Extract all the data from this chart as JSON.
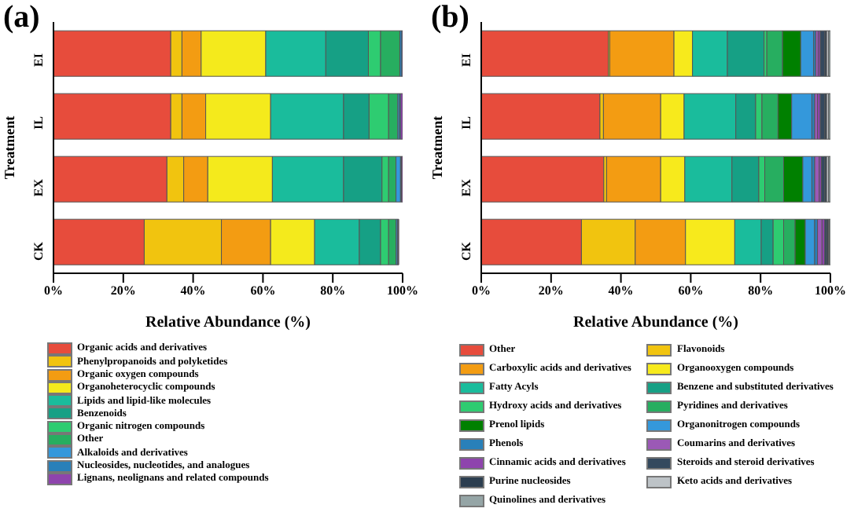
{
  "chart_data": [
    {
      "type": "bar",
      "title": "(a)",
      "xlabel": "Relative Abundance (%)",
      "ylabel": "Treatment",
      "orientation": "horizontal",
      "stacked": true,
      "legend": "bottom",
      "grid": false,
      "categories": [
        "EI",
        "IL",
        "EX",
        "CK"
      ],
      "xlim": [
        0,
        100
      ],
      "xticks": [
        {
          "value": 0,
          "label": "0%"
        },
        {
          "value": 20,
          "label": "20%"
        },
        {
          "value": 40,
          "label": "40%"
        },
        {
          "value": 60,
          "label": "60%"
        },
        {
          "value": 80,
          "label": "80%"
        },
        {
          "value": 100,
          "label": "100%"
        }
      ],
      "series": [
        {
          "name": "Organic acids and derivatives",
          "color": "#e74c3c",
          "values": [
            33.6,
            33.6,
            32.5,
            26.0
          ]
        },
        {
          "name": "Phenylpropanoids and polyketides",
          "color": "#f1c40f",
          "values": [
            3.2,
            3.2,
            4.8,
            22.1
          ]
        },
        {
          "name": "Organic oxygen compounds",
          "color": "#f39c12",
          "values": [
            5.5,
            6.8,
            6.9,
            14.1
          ]
        },
        {
          "name": "Organoheterocyclic compounds",
          "color": "#f4ea1c",
          "values": [
            18.5,
            18.6,
            18.5,
            12.6
          ]
        },
        {
          "name": "Lipids and lipid-like molecules",
          "color": "#1abc9c",
          "values": [
            17.2,
            20.9,
            20.4,
            12.8
          ]
        },
        {
          "name": "Benzenoids",
          "color": "#16a085",
          "values": [
            12.2,
            7.3,
            11.0,
            6.1
          ]
        },
        {
          "name": "Organic nitrogen compounds",
          "color": "#2ecc71",
          "values": [
            3.5,
            5.6,
            1.9,
            2.3
          ]
        },
        {
          "name": "Other",
          "color": "#27ae60",
          "values": [
            5.5,
            2.6,
            2.1,
            2.1
          ]
        },
        {
          "name": "Alkaloids and derivatives",
          "color": "#3498db",
          "values": [
            null,
            0.4,
            1.3,
            0.4
          ]
        },
        {
          "name": "Nucleosides, nucleotides, and analogues",
          "color": "#2980b9",
          "values": [
            0.6,
            0.4,
            0.3,
            0.2
          ]
        },
        {
          "name": "Lignans, neolignans and related compounds",
          "color": "#8e44ad",
          "values": [
            0.2,
            0.6,
            0.3,
            0.2
          ]
        }
      ]
    },
    {
      "type": "bar",
      "title": "(b)",
      "xlabel": "Relative Abundance (%)",
      "ylabel": "Treatment",
      "orientation": "horizontal",
      "stacked": true,
      "legend": "bottom",
      "grid": false,
      "categories": [
        "EI",
        "IL",
        "EX",
        "CK"
      ],
      "xlim": [
        0,
        100
      ],
      "xticks": [
        {
          "value": 0,
          "label": "0%"
        },
        {
          "value": 20,
          "label": "20%"
        },
        {
          "value": 40,
          "label": "40%"
        },
        {
          "value": 60,
          "label": "60%"
        },
        {
          "value": 80,
          "label": "80%"
        },
        {
          "value": 100,
          "label": "100%"
        }
      ],
      "series": [
        {
          "name": "Other",
          "color": "#e74c3c",
          "values": [
            36.4,
            34.0,
            35.1,
            28.7
          ]
        },
        {
          "name": "Flavonoids",
          "color": "#f1c40f",
          "values": [
            0.4,
            1.0,
            0.8,
            15.4
          ]
        },
        {
          "name": "Carboxylic acids and derivatives",
          "color": "#f39c12",
          "values": [
            18.4,
            16.4,
            15.5,
            14.4
          ]
        },
        {
          "name": "Organooxygen compounds",
          "color": "#f7ea1c",
          "values": [
            5.3,
            6.7,
            6.9,
            14.1
          ]
        },
        {
          "name": "Fatty Acyls",
          "color": "#1abc9c",
          "values": [
            10.0,
            14.8,
            13.5,
            7.6
          ]
        },
        {
          "name": "Benzene and substituted derivatives",
          "color": "#16a085",
          "values": [
            10.5,
            5.7,
            7.7,
            3.4
          ]
        },
        {
          "name": "Hydroxy acids and derivatives",
          "color": "#2ecc71",
          "values": [
            0.8,
            1.8,
            1.7,
            3.0
          ]
        },
        {
          "name": "Pyridines and derivatives",
          "color": "#27ae60",
          "values": [
            4.5,
            4.6,
            5.4,
            3.3
          ]
        },
        {
          "name": "Prenol lipids",
          "color": "#008000",
          "values": [
            5.2,
            3.9,
            5.5,
            2.9
          ]
        },
        {
          "name": "Organonitrogen compounds",
          "color": "#3498db",
          "values": [
            3.7,
            5.8,
            2.6,
            2.7
          ]
        },
        {
          "name": "Phenols",
          "color": "#2980b9",
          "values": [
            0.6,
            0.8,
            0.8,
            0.8
          ]
        },
        {
          "name": "Coumarins and derivatives",
          "color": "#9b59b6",
          "values": [
            0.7,
            0.8,
            1.3,
            1.3
          ]
        },
        {
          "name": "Cinnamic acids and derivatives",
          "color": "#8e44ad",
          "values": [
            0.6,
            0.8,
            0.6,
            0.8
          ]
        },
        {
          "name": "Steroids and steroid derivatives",
          "color": "#34495e",
          "values": [
            1.3,
            1.3,
            1.0,
            0.6
          ]
        },
        {
          "name": "Purine nucleosides",
          "color": "#2c3e50",
          "values": [
            0.5,
            0.5,
            0.5,
            0.4
          ]
        },
        {
          "name": "Keto acids and derivatives",
          "color": "#bdc3c7",
          "values": [
            0.6,
            0.6,
            0.6,
            0.3
          ]
        },
        {
          "name": "Quinolines and derivatives",
          "color": "#95a5a6",
          "values": [
            0.5,
            0.5,
            0.5,
            0.3
          ]
        }
      ]
    }
  ]
}
